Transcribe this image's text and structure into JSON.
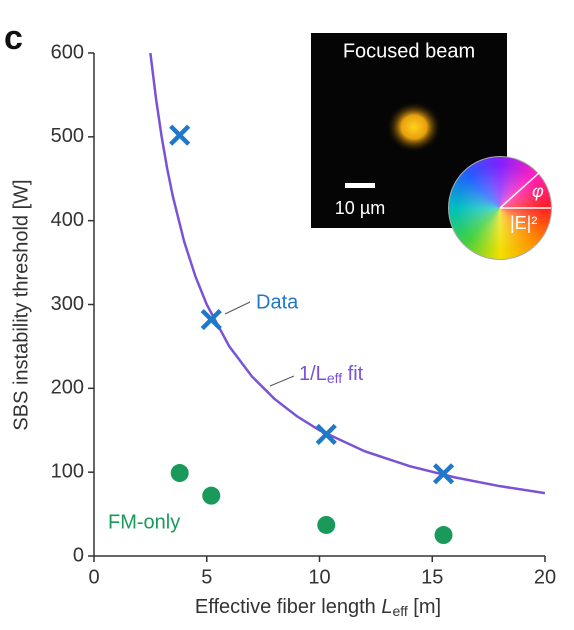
{
  "panel_label": "c",
  "chart_data": {
    "type": "scatter",
    "y_label": "SBS instability threshold [W]",
    "x_label": "Effective fiber length ",
    "x_label_var": "L",
    "x_label_sub": "eff",
    "x_label_unit": " [m]",
    "xlim": [
      0,
      20
    ],
    "ylim": [
      0,
      600
    ],
    "xticks": [
      0,
      5,
      10,
      15,
      20
    ],
    "yticks": [
      0,
      100,
      200,
      300,
      400,
      500,
      600
    ],
    "series": [
      {
        "name": "Data",
        "color": "#1f78c8",
        "marker": "x",
        "x": [
          3.8,
          5.2,
          10.3,
          15.5
        ],
        "values": [
          502,
          282,
          145,
          98
        ]
      },
      {
        "name": "FM-only",
        "color": "#1a9a5a",
        "marker": "circle",
        "x": [
          3.8,
          5.2,
          10.3,
          15.5
        ],
        "values": [
          99,
          72,
          37,
          25
        ]
      },
      {
        "name": "1/L",
        "name_sub": "eff",
        "name_suffix": " fit",
        "color": "#7b52d6",
        "marker": "line",
        "x": [
          2.5,
          2.75,
          3,
          3.25,
          3.5,
          4,
          4.5,
          5,
          6,
          7,
          8,
          9,
          10,
          12,
          14,
          16,
          18,
          20
        ],
        "values": [
          600,
          545.5,
          500,
          461.5,
          428.6,
          375,
          333.3,
          300,
          250,
          214.3,
          187.5,
          166.7,
          150,
          125,
          107.1,
          93.8,
          83.3,
          75
        ]
      }
    ],
    "inset": {
      "title": "Focused beam",
      "scale_bar": "10 µm",
      "phase_label": "φ",
      "amplitude_label": "|E|²"
    }
  }
}
